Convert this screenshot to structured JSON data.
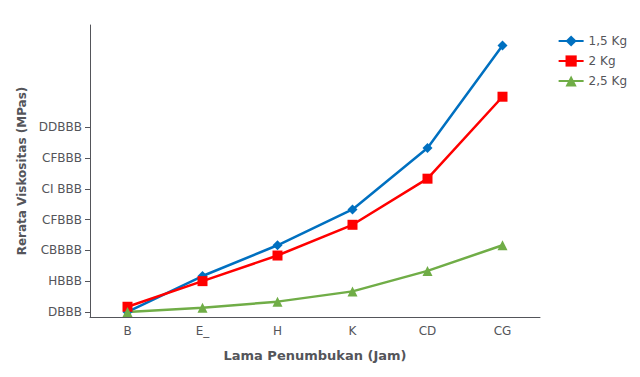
{
  "chart_data": {
    "type": "line",
    "xlabel": "Lama Penumbukan (Jam)",
    "ylabel": "Rerata Viskositas (MPas)",
    "categories": [
      "B",
      "E_",
      "H",
      "K",
      "CD",
      "CG"
    ],
    "series": [
      {
        "name": "1,5 Kg",
        "color": "#0070C0",
        "marker": "diamond",
        "values": [
          2000,
          5500,
          8500,
          12000,
          18000,
          28000
        ]
      },
      {
        "name": "2 Kg",
        "color": "#FF0000",
        "marker": "square",
        "values": [
          2500,
          5000,
          7500,
          10500,
          15000,
          23000
        ]
      },
      {
        "name": "2,5 Kg",
        "color": "#70AD47",
        "marker": "triangle",
        "values": [
          2000,
          2400,
          3000,
          4000,
          6000,
          8500
        ]
      }
    ],
    "ylim": [
      1500,
      30000
    ],
    "yticks": [
      {
        "value": 2000,
        "label": "DBBB"
      },
      {
        "value": 5000,
        "label": "HBBB"
      },
      {
        "value": 8000,
        "label": "CBBBB"
      },
      {
        "value": 11000,
        "label": "CFBBB"
      },
      {
        "value": 14000,
        "label": "CI BBB"
      },
      {
        "value": 17000,
        "label": "CFBBB"
      },
      {
        "value": 20000,
        "label": "DDBBB"
      }
    ],
    "grid": false,
    "legend": "upper right"
  }
}
